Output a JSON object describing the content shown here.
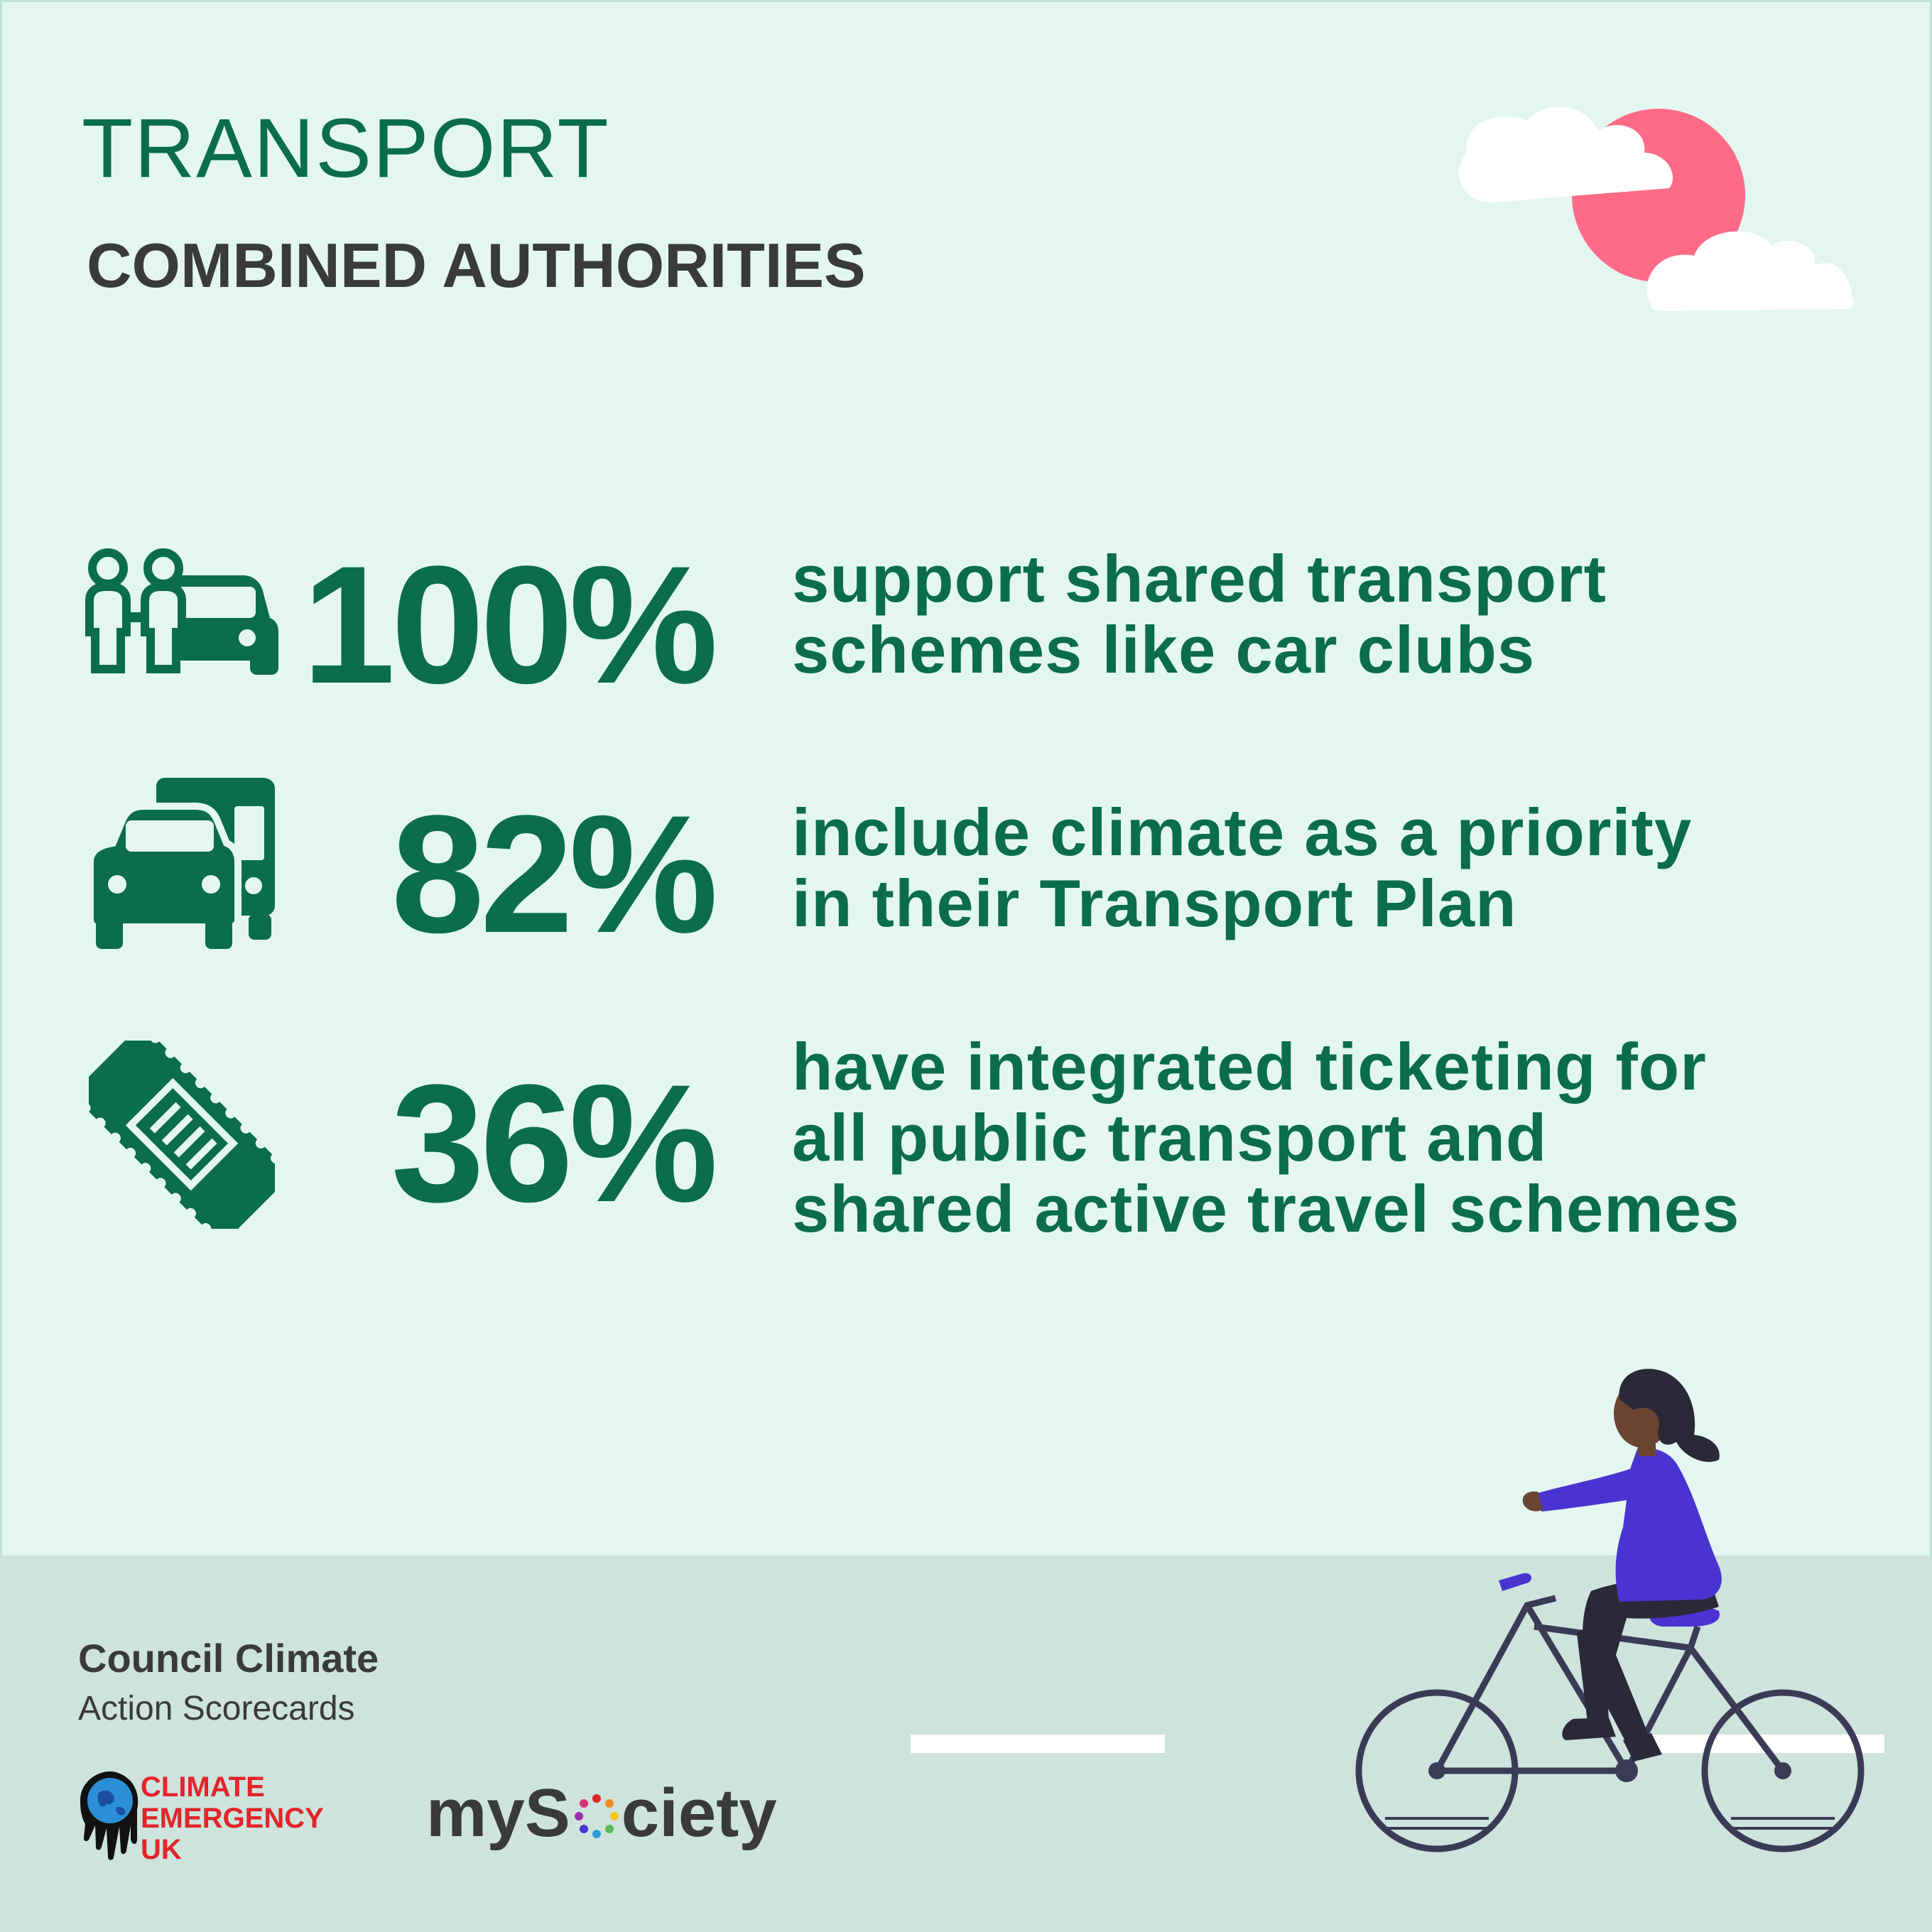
{
  "header": {
    "title": "TRANSPORT",
    "subtitle": "COMBINED AUTHORITIES"
  },
  "stats": [
    {
      "value": "100%",
      "icon": "shared-car-people-icon",
      "lines": [
        "support shared transport",
        "schemes like car clubs"
      ]
    },
    {
      "value": "82%",
      "icon": "car-and-bus-icon",
      "lines": [
        "include climate as a priority",
        "in their Transport Plan"
      ]
    },
    {
      "value": "36%",
      "icon": "ticket-icon",
      "lines": [
        "have integrated ticketing for",
        "all public transport and",
        "shared active travel schemes"
      ]
    }
  ],
  "footer": {
    "brand_line1": "Council Climate",
    "brand_line2": "Action Scorecards",
    "ceuk_lines": [
      "CLIMATE",
      "EMERGENCY",
      "UK"
    ],
    "mysociety_prefix": "myS",
    "mysociety_suffix": "ciety"
  },
  "colors": {
    "background": "#e3f7f0",
    "ground": "#cde3dc",
    "accent_green": "#0b6d4a",
    "sun": "#ff6b86",
    "shirt": "#4b33d1",
    "ceuk_red": "#e3242b"
  }
}
